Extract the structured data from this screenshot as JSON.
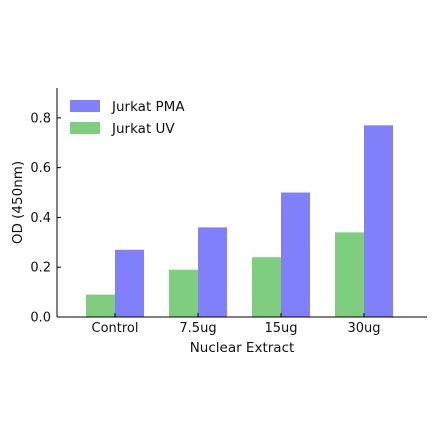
{
  "chart_data": {
    "type": "bar",
    "title": "",
    "xlabel": "Nuclear Extract",
    "ylabel": "OD (450nm)",
    "categories": [
      "Control",
      "7.5ug",
      "15ug",
      "30ug"
    ],
    "series": [
      {
        "name": "Jurkat UV",
        "color": "#7fce7f",
        "values": [
          0.09,
          0.19,
          0.24,
          0.34
        ]
      },
      {
        "name": "Jurkat PMA",
        "color": "#8080fa",
        "values": [
          0.27,
          0.36,
          0.5,
          0.77
        ]
      }
    ],
    "legend_order": [
      1,
      0
    ],
    "ylim": [
      0,
      0.92
    ],
    "yticks": [
      0.0,
      0.2,
      0.4,
      0.6,
      0.8
    ],
    "ytick_labels": [
      "0.0",
      "0.2",
      "0.4",
      "0.6",
      "0.8"
    ],
    "grid": false,
    "legend_position": "top-left"
  }
}
